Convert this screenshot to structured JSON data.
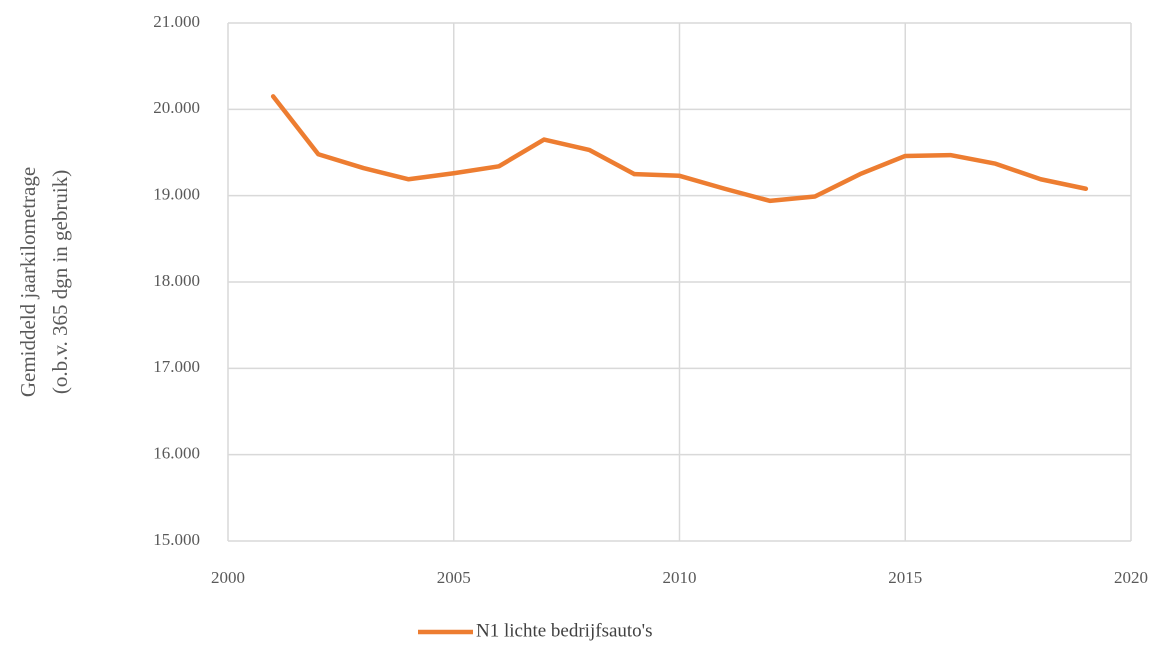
{
  "chart_data": {
    "type": "line",
    "ylabel": [
      "Gemiddeld jaarkilometrage",
      "(o.b.v. 365 dgn in gebruik)"
    ],
    "x": [
      2001,
      2002,
      2003,
      2004,
      2005,
      2006,
      2007,
      2008,
      2009,
      2010,
      2011,
      2012,
      2013,
      2014,
      2015,
      2016,
      2017,
      2018,
      2019
    ],
    "series": [
      {
        "name": "N1 lichte bedrijfsauto's",
        "color": "#ed7d31",
        "values": [
          20150,
          19480,
          19320,
          19190,
          19260,
          19340,
          19650,
          19530,
          19250,
          19230,
          19080,
          18940,
          18990,
          19250,
          19460,
          19470,
          19370,
          19190,
          19080
        ]
      }
    ],
    "xlim": [
      2000,
      2020
    ],
    "xticks": [
      2000,
      2005,
      2010,
      2015,
      2020
    ],
    "ylim": [
      15000,
      21000
    ],
    "yticks": [
      {
        "value": 15000,
        "label": "15.000"
      },
      {
        "value": 16000,
        "label": "16.000"
      },
      {
        "value": 17000,
        "label": "17.000"
      },
      {
        "value": 18000,
        "label": "18.000"
      },
      {
        "value": 19000,
        "label": "19.000"
      },
      {
        "value": 20000,
        "label": "20.000"
      },
      {
        "value": 21000,
        "label": "21.000"
      }
    ],
    "grid": true,
    "legend": "bottom"
  }
}
